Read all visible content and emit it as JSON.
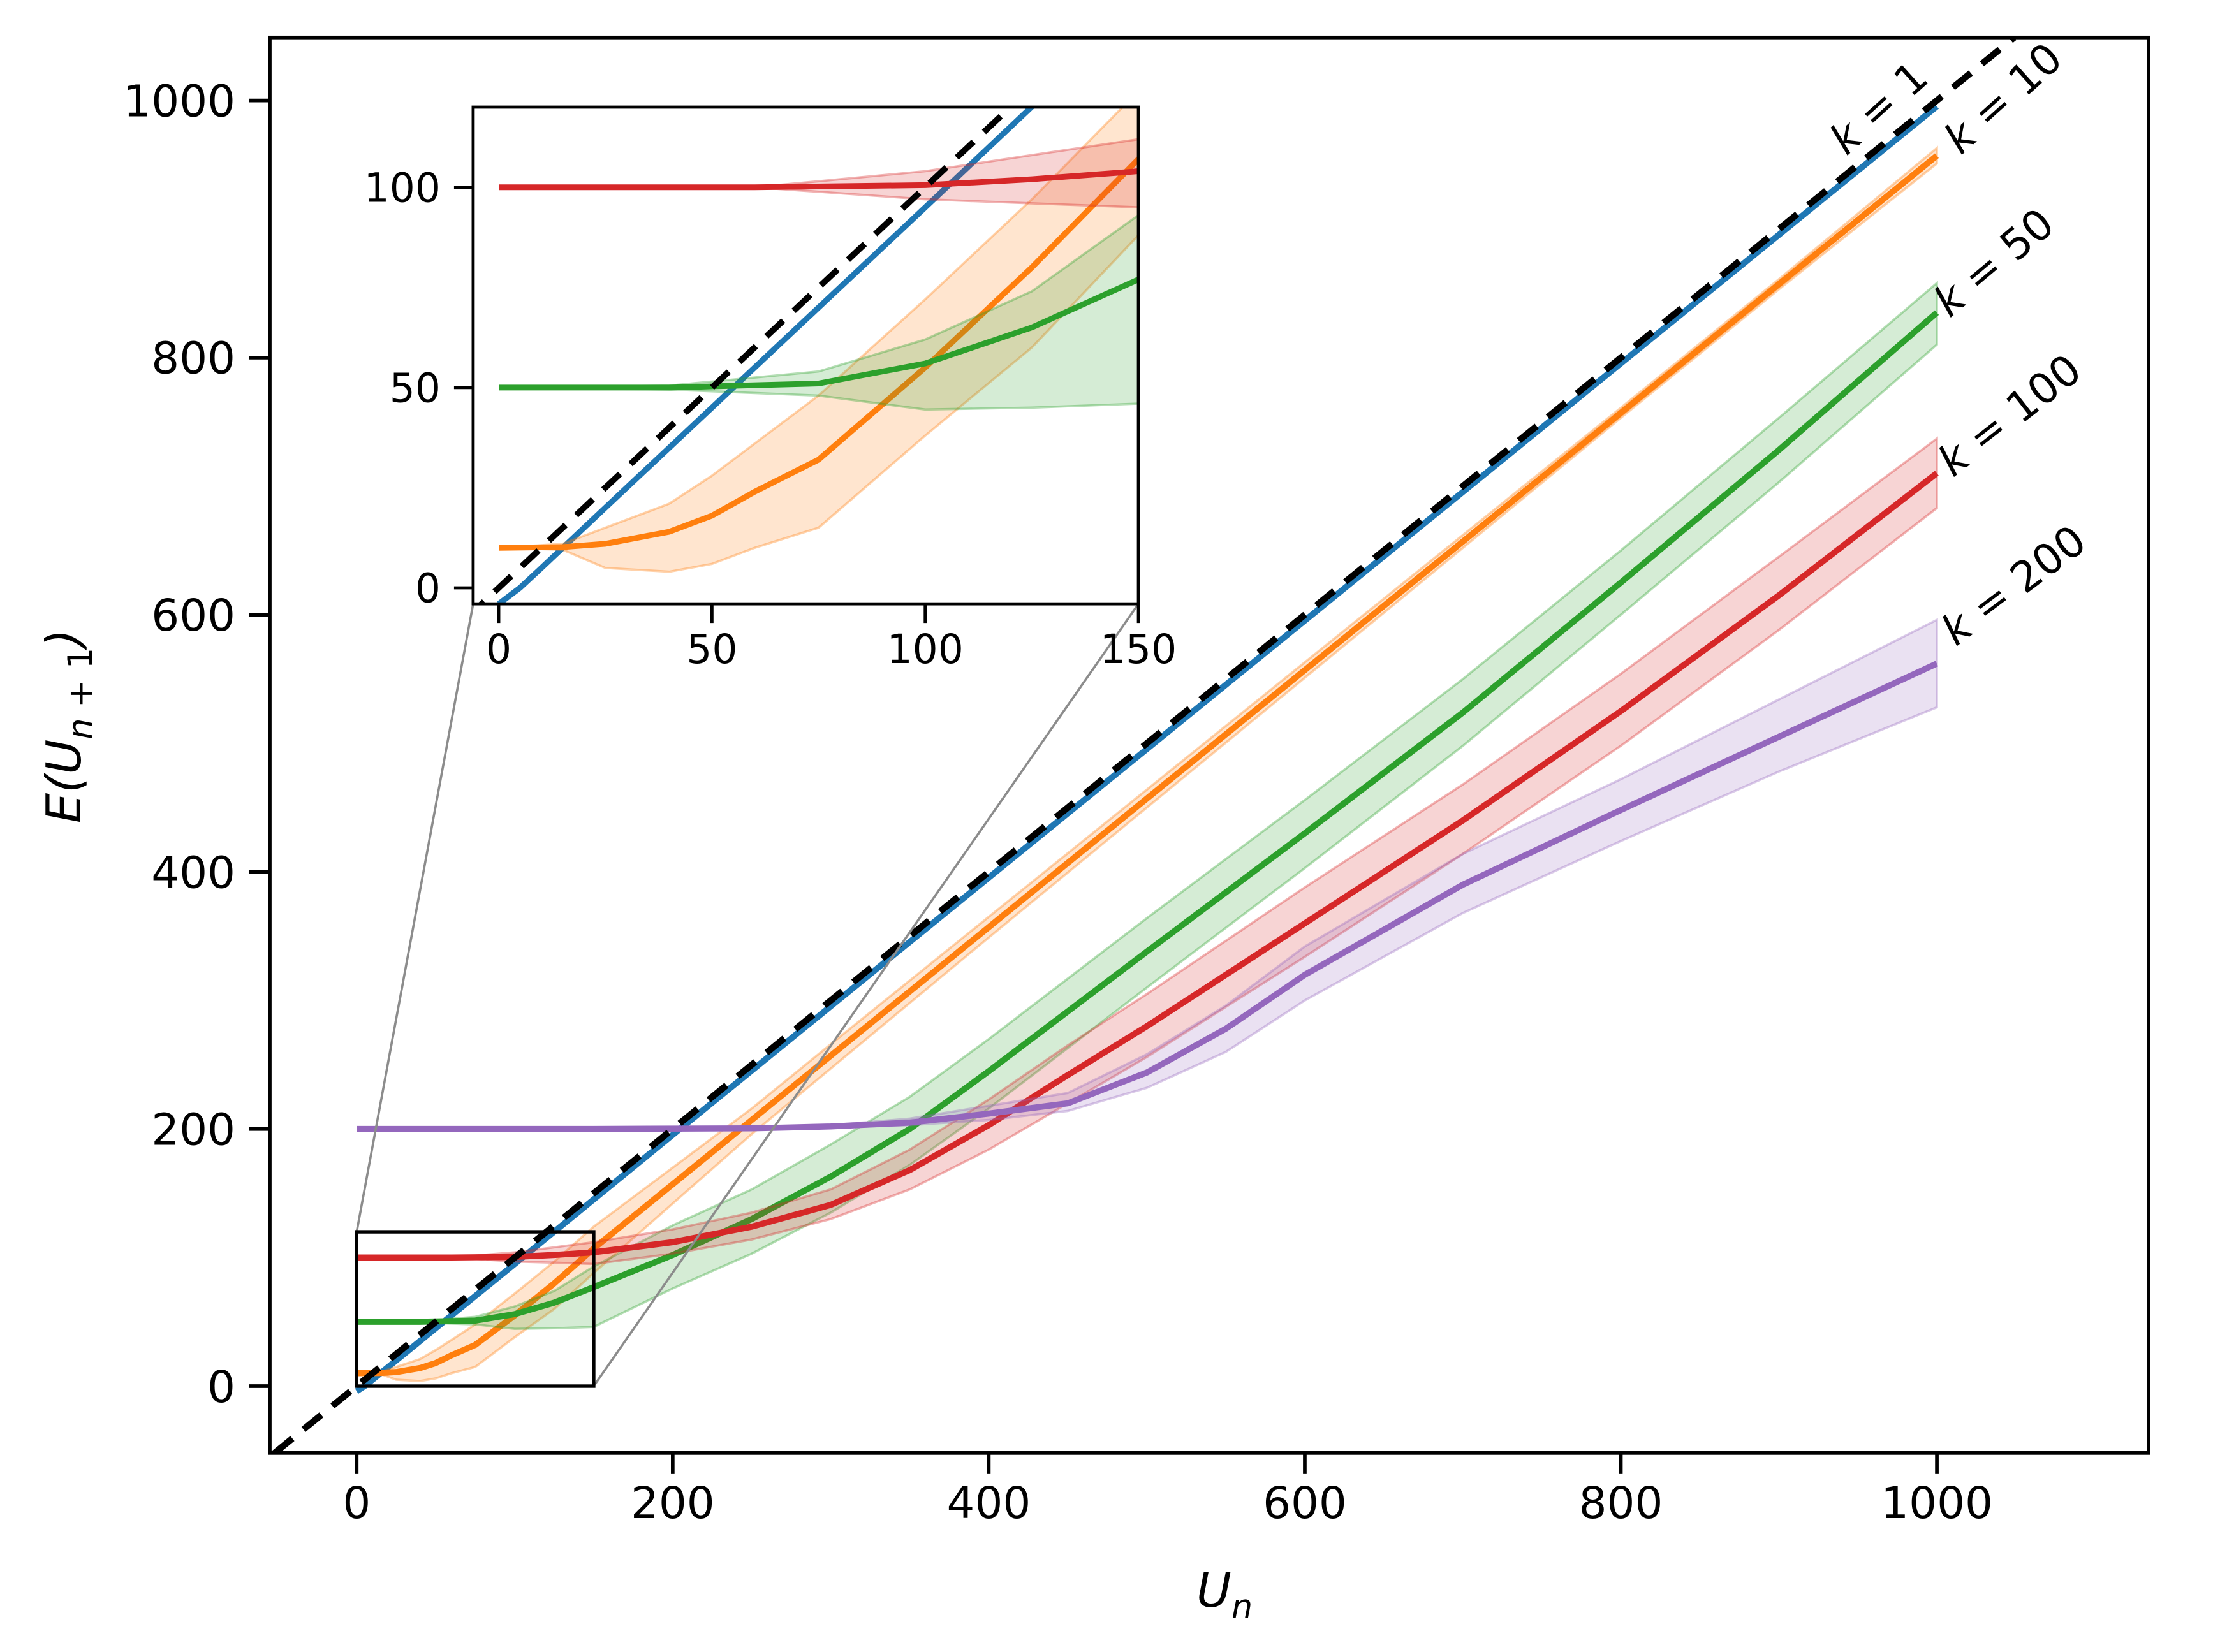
{
  "figure": {
    "background": "#ffffff",
    "axis_color": "#000000",
    "connector_color": "#8c8c8c",
    "band_opacity": 0.2,
    "band_edge_opacity": 0.35
  },
  "chart_data": {
    "type": "line",
    "title": "",
    "xlabel": {
      "main": "U",
      "sub": "n"
    },
    "ylabel": {
      "main": "E(U",
      "sub_var": "n",
      "sub_rest": " + 1",
      "close": ")"
    },
    "grid": false,
    "legend_position": "end-of-line-labels",
    "main_axes": {
      "xlim": [
        -55,
        1134
      ],
      "ylim": [
        -52,
        1049
      ],
      "x_ticks": [
        "0",
        "200",
        "400",
        "600",
        "800",
        "1000"
      ],
      "x_tick_values": [
        0,
        200,
        400,
        600,
        800,
        1000
      ],
      "y_ticks": [
        "0",
        "200",
        "400",
        "600",
        "800",
        "1000"
      ],
      "y_tick_values": [
        0,
        200,
        400,
        600,
        800,
        1000
      ]
    },
    "inset_axes": {
      "xlim": [
        -6,
        150
      ],
      "ylim": [
        -4,
        120
      ],
      "x_ticks": [
        "0",
        "50",
        "100",
        "150"
      ],
      "x_tick_values": [
        0,
        50,
        100,
        150
      ],
      "y_ticks": [
        "0",
        "50",
        "100"
      ],
      "y_tick_values": [
        0,
        50,
        100
      ]
    },
    "zoom_rect": {
      "x0": 0,
      "y0": 0,
      "x1": 150,
      "y1": 120
    },
    "identity_line": {
      "name": "diagonal-identity",
      "style": "dashed",
      "color": "#000000",
      "points": [
        [
          -52,
          -52
        ],
        [
          1049,
          1049
        ]
      ]
    },
    "series": [
      {
        "name": "k-1",
        "k": 1,
        "label": "k = 1",
        "color": "#1f77b4",
        "x": [
          0,
          5,
          10,
          25,
          50,
          100,
          200,
          400,
          600,
          800,
          1000
        ],
        "y": [
          -4,
          0,
          5,
          20,
          45,
          95,
          195.5,
          395.5,
          595.5,
          795.5,
          995.5
        ],
        "ylo": null,
        "yhi": null,
        "label_pos": {
          "x": 987,
          "y": 62,
          "rot": -42
        }
      },
      {
        "name": "k-10",
        "k": 10,
        "label": "k = 10",
        "color": "#ff7f0e",
        "x": [
          0,
          15,
          25,
          40,
          50,
          60,
          75,
          100,
          125,
          150,
          200,
          250,
          300,
          400,
          500,
          600,
          700,
          800,
          900,
          1000
        ],
        "y": [
          10,
          10.2,
          11,
          14,
          18,
          24,
          32,
          55,
          80,
          107,
          157,
          207,
          257,
          357,
          457,
          557,
          657,
          757,
          857,
          957
        ],
        "ylo": [
          10,
          9.5,
          5,
          4,
          6,
          10,
          15,
          38,
          60,
          88,
          142,
          196,
          247,
          349,
          450,
          551,
          652,
          753,
          853,
          951
        ],
        "yhi": [
          10,
          11,
          15,
          21,
          28,
          36,
          48,
          72,
          97,
          124,
          170,
          216,
          266,
          365,
          464,
          563,
          662,
          761,
          861,
          963
        ],
        "label_pos": {
          "x": 1052,
          "y": 57,
          "rot": -42
        }
      },
      {
        "name": "k-50",
        "k": 50,
        "label": "k = 50",
        "color": "#2ca02c",
        "x": [
          0,
          40,
          75,
          100,
          125,
          150,
          200,
          250,
          300,
          350,
          400,
          500,
          600,
          700,
          800,
          900,
          1000
        ],
        "y": [
          50,
          50,
          51,
          56,
          65,
          77,
          102,
          130,
          163,
          200,
          245,
          338,
          430,
          524,
          625,
          728,
          835
        ],
        "ylo": [
          50,
          49.5,
          48,
          44.5,
          45,
          46,
          76,
          103,
          135,
          172,
          216,
          310,
          403,
          498,
          600,
          703,
          810
        ],
        "yhi": [
          50,
          50.5,
          54,
          62,
          74,
          93,
          125,
          153,
          188,
          225,
          270,
          364,
          456,
          550,
          650,
          753,
          858
        ],
        "label_pos": {
          "x": 1047,
          "y": 143,
          "rot": -40
        }
      },
      {
        "name": "k-100",
        "k": 100,
        "label": "k = 100",
        "color": "#d62728",
        "x": [
          0,
          60,
          100,
          125,
          150,
          200,
          250,
          300,
          350,
          400,
          450,
          500,
          600,
          700,
          800,
          900,
          1000
        ],
        "y": [
          100,
          100,
          100.5,
          102,
          104,
          112,
          124,
          141,
          168,
          203,
          242,
          280,
          360,
          440,
          525,
          615,
          710
        ],
        "ylo": [
          100,
          100,
          97,
          96,
          95,
          103,
          114,
          130,
          153,
          184,
          220,
          256,
          334,
          414,
          498,
          588,
          683
        ],
        "yhi": [
          100,
          100,
          104,
          108,
          112,
          122,
          135,
          153,
          184,
          223,
          265,
          305,
          388,
          468,
          554,
          645,
          737
        ],
        "label_pos": {
          "x": 1055,
          "y": 223,
          "rot": -38
        }
      },
      {
        "name": "k-200",
        "k": 200,
        "label": "k = 200",
        "color": "#9467bd",
        "x": [
          0,
          150,
          250,
          300,
          350,
          400,
          450,
          500,
          550,
          600,
          700,
          800,
          900,
          1000
        ],
        "y": [
          200,
          200,
          200.5,
          202,
          205,
          212,
          220,
          244,
          278,
          320,
          390,
          448,
          505,
          562
        ],
        "ylo": [
          200,
          200,
          200,
          201,
          203,
          207,
          214,
          232,
          260,
          300,
          368,
          424,
          478,
          528
        ],
        "yhi": [
          200,
          200,
          201,
          203,
          208,
          218,
          228,
          258,
          296,
          342,
          414,
          472,
          534,
          596
        ],
        "label_pos": {
          "x": 1057,
          "y": 312,
          "rot": -37
        }
      }
    ]
  }
}
